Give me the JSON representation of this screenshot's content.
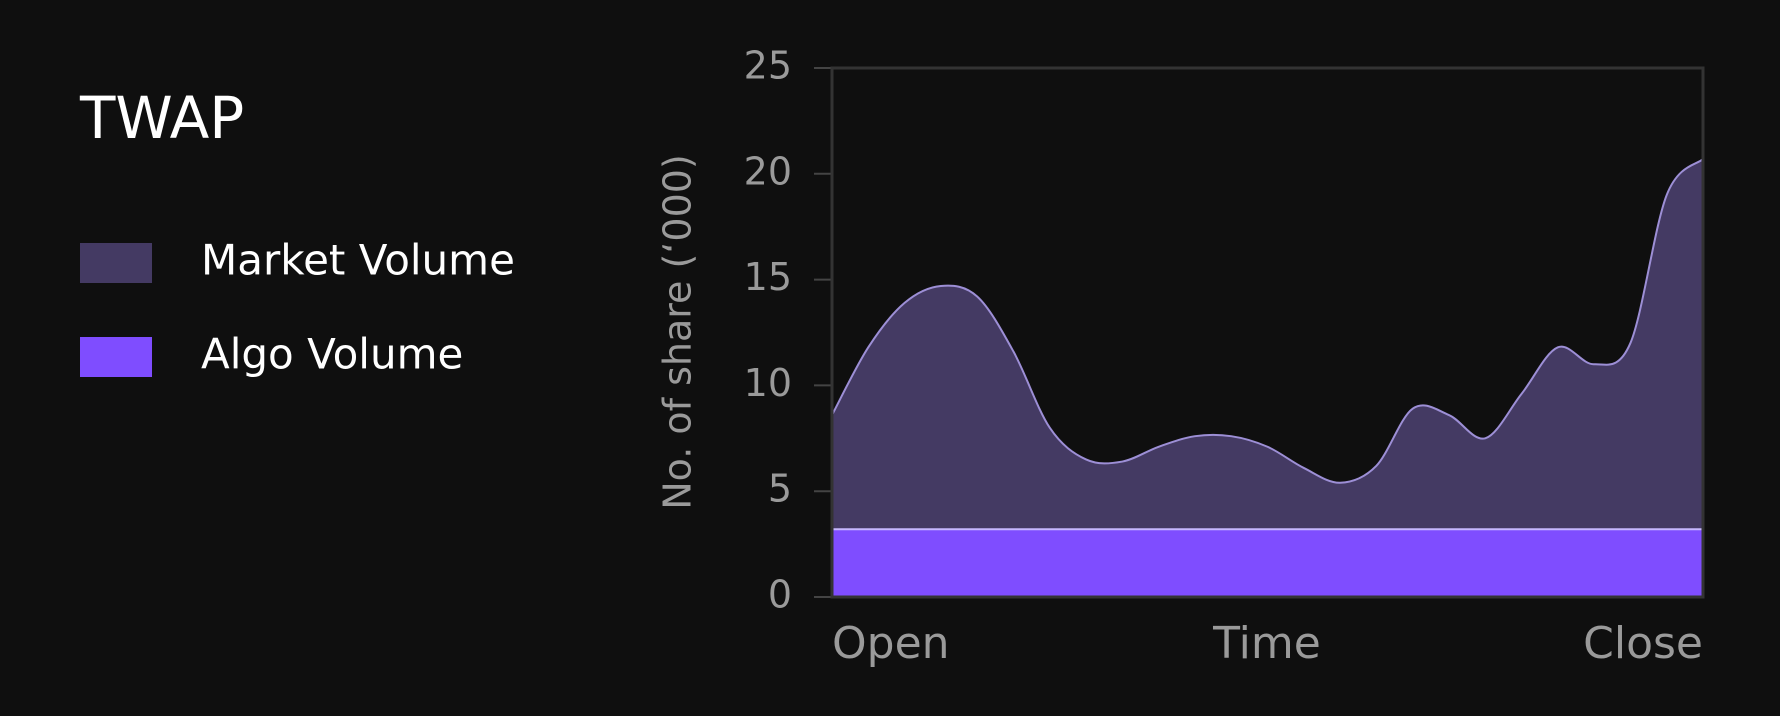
{
  "chart_data": {
    "type": "area",
    "title": "TWAP",
    "x_label": "Time",
    "y_label": "No. of share (‘000)",
    "categories": [
      "Open",
      null,
      null,
      null,
      null,
      null,
      null,
      null,
      null,
      null,
      null,
      null,
      null,
      null,
      null,
      null,
      null,
      null,
      null,
      null,
      null,
      null,
      null,
      null,
      "Close"
    ],
    "series": [
      {
        "name": "Market Volume",
        "color": "#443a63",
        "line_color": "#9d8fd6",
        "values": [
          8.6,
          11.8,
          13.9,
          14.7,
          14.2,
          11.6,
          8.0,
          6.5,
          6.4,
          7.1,
          7.6,
          7.6,
          7.1,
          6.1,
          5.4,
          6.2,
          8.9,
          8.6,
          7.5,
          9.6,
          11.8,
          11.0,
          12.0,
          19.0,
          20.7
        ]
      },
      {
        "name": "Algo Volume",
        "color": "#7f4dff",
        "line_color": "#c7b8ff",
        "values": [
          3.2,
          3.2,
          3.2,
          3.2,
          3.2,
          3.2,
          3.2,
          3.2,
          3.2,
          3.2,
          3.2,
          3.2,
          3.2,
          3.2,
          3.2,
          3.2,
          3.2,
          3.2,
          3.2,
          3.2,
          3.2,
          3.2,
          3.2,
          3.2,
          3.2
        ]
      }
    ],
    "ylim": [
      0,
      25
    ],
    "yticks": [
      0,
      5,
      10,
      15,
      20,
      25
    ],
    "grid": false,
    "legend": "left"
  }
}
